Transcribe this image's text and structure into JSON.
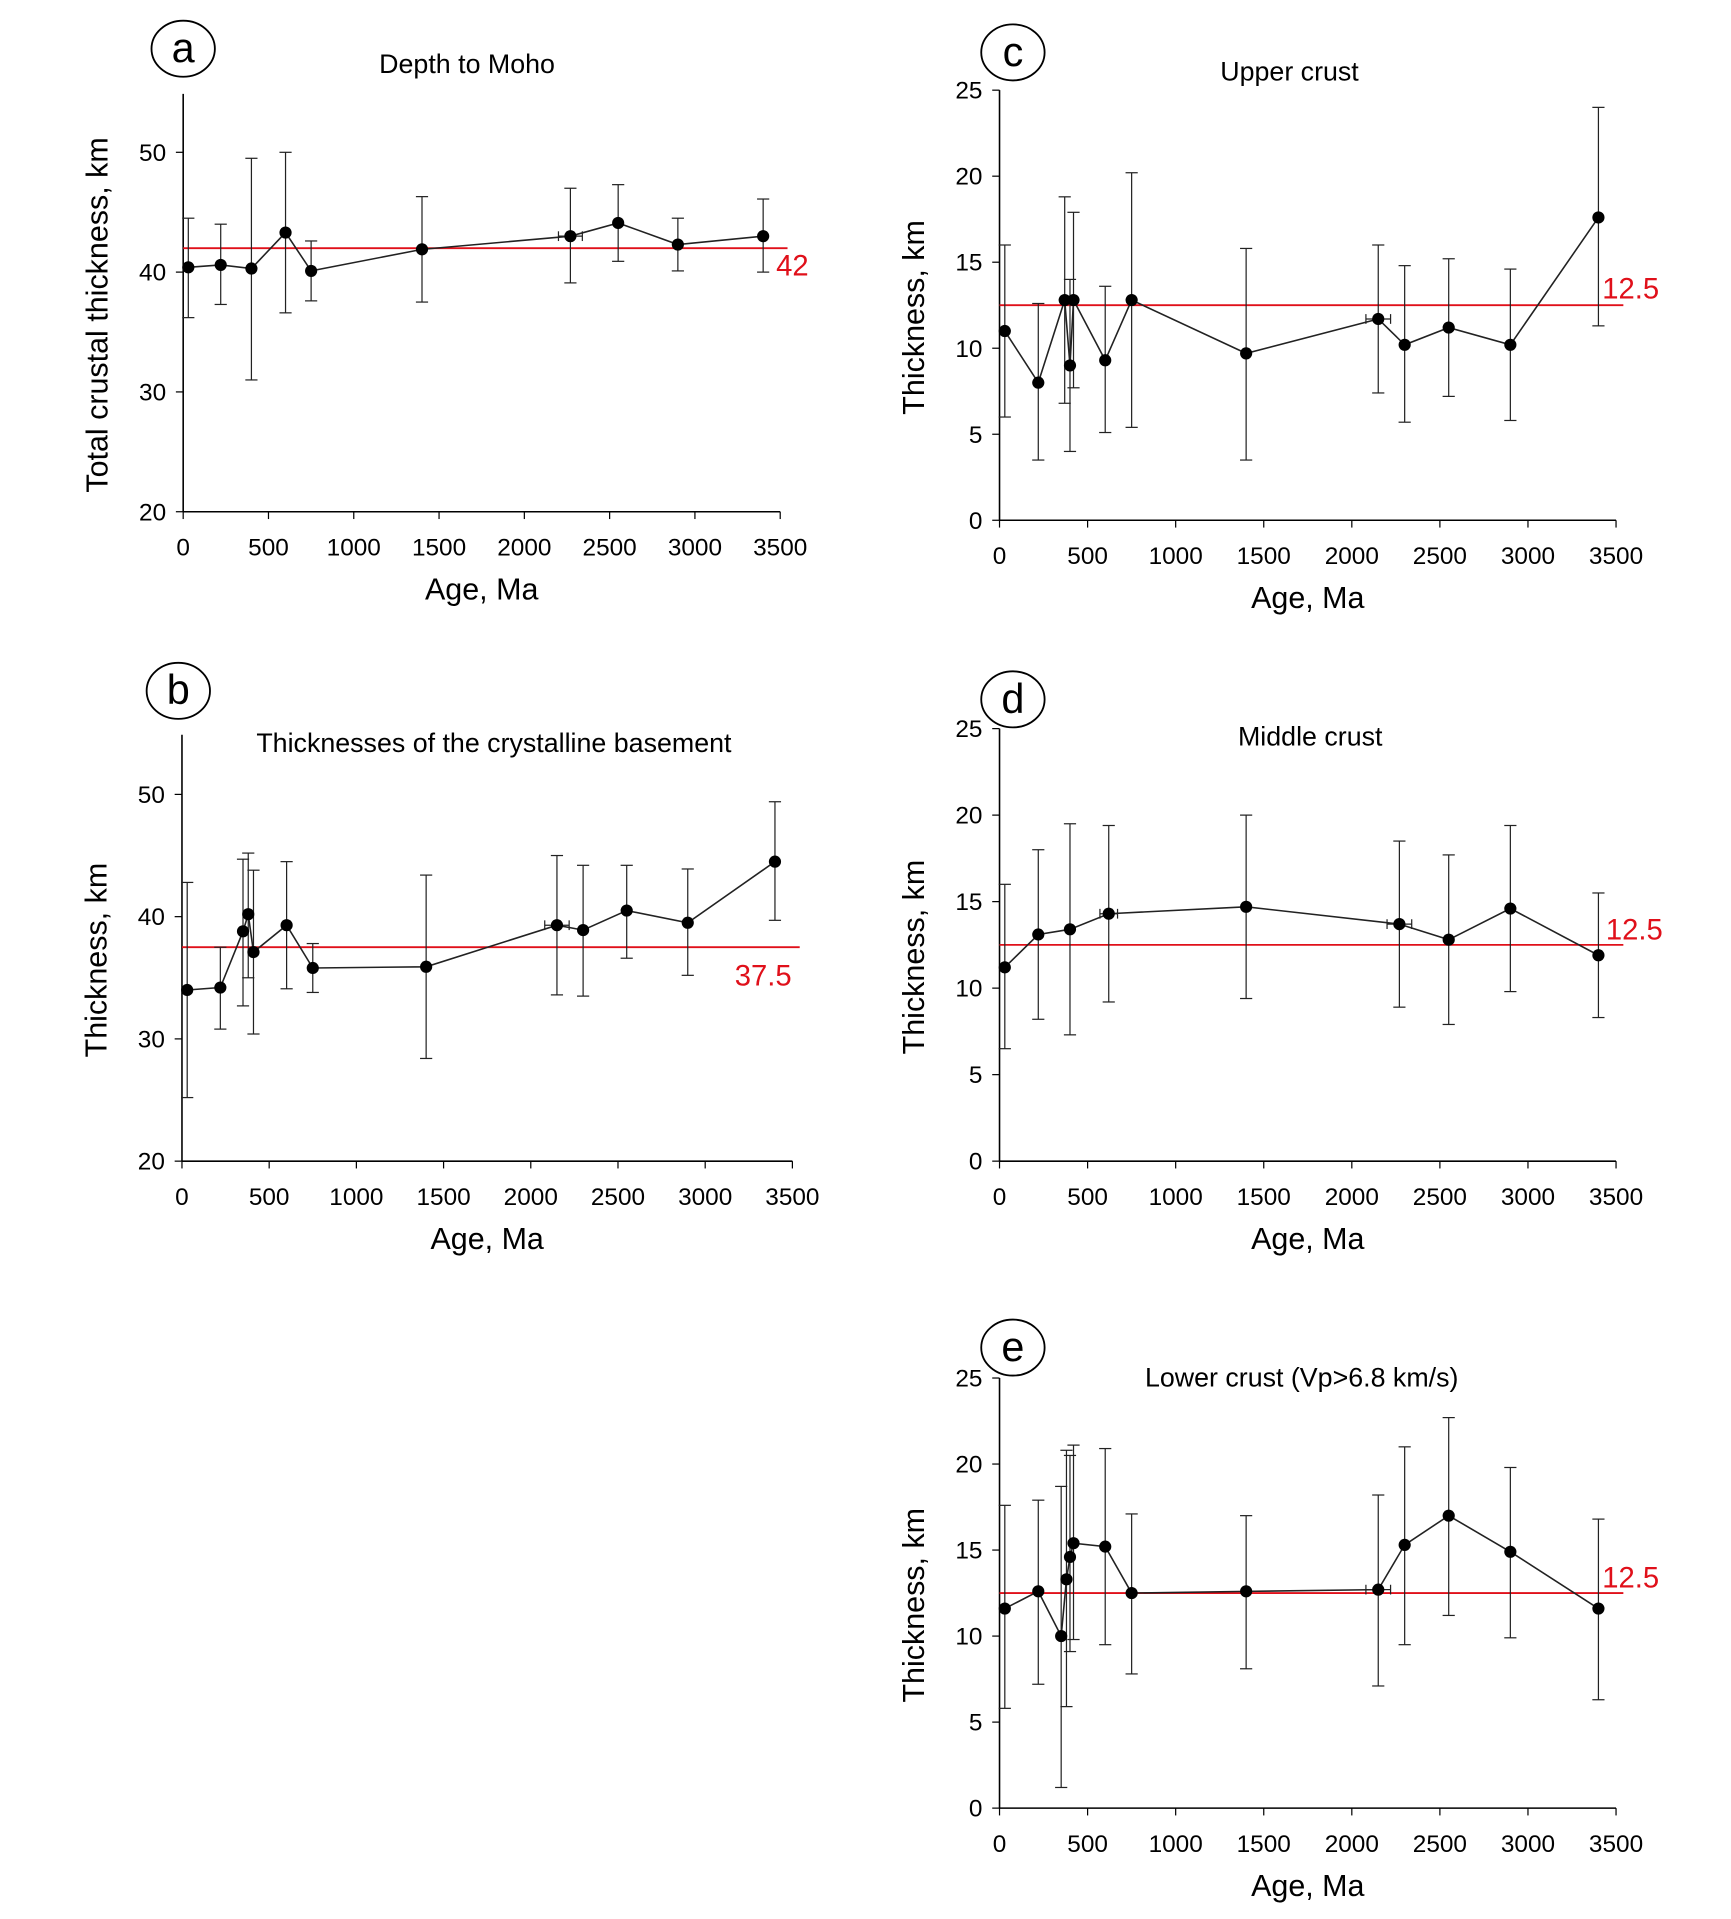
{
  "colors": {
    "data": "#000000",
    "mean_line": "#e0101a"
  },
  "chart_data": [
    {
      "panel": "a",
      "type": "line",
      "title": "Depth to Moho",
      "xlabel": "Age, Ma",
      "ylabel": "Total crustal thickness, km",
      "xlim": [
        0,
        3500
      ],
      "ylim": [
        20,
        55
      ],
      "xticks": [
        0,
        500,
        1000,
        1500,
        2000,
        2500,
        3000,
        3500
      ],
      "yticks": [
        20,
        30,
        40,
        50
      ],
      "mean": 42,
      "mean_label": "42",
      "points": [
        {
          "x": 30,
          "y": 40.4,
          "ylo": 36.2,
          "yhi": 44.5
        },
        {
          "x": 220,
          "y": 40.6,
          "ylo": 37.3,
          "yhi": 44.0
        },
        {
          "x": 400,
          "y": 40.3,
          "ylo": 31.0,
          "yhi": 49.5
        },
        {
          "x": 600,
          "y": 43.3,
          "ylo": 36.6,
          "yhi": 50.0
        },
        {
          "x": 750,
          "y": 40.1,
          "ylo": 37.6,
          "yhi": 42.6
        },
        {
          "x": 1400,
          "y": 41.9,
          "ylo": 37.5,
          "yhi": 46.3
        },
        {
          "x": 2270,
          "y": 43.0,
          "ylo": 39.1,
          "yhi": 47.0,
          "xlo": 2200,
          "xhi": 2340
        },
        {
          "x": 2550,
          "y": 44.1,
          "ylo": 40.9,
          "yhi": 47.3
        },
        {
          "x": 2900,
          "y": 42.3,
          "ylo": 40.1,
          "yhi": 44.5
        },
        {
          "x": 3400,
          "y": 43.0,
          "ylo": 40.0,
          "yhi": 46.1
        }
      ]
    },
    {
      "panel": "b",
      "type": "line",
      "title": "Thicknesses of the crystalline basement",
      "xlabel": "Age, Ma",
      "ylabel": "Thickness, km",
      "xlim": [
        0,
        3500
      ],
      "ylim": [
        20,
        55
      ],
      "xticks": [
        0,
        500,
        1000,
        1500,
        2000,
        2500,
        3000,
        3500
      ],
      "yticks": [
        20,
        30,
        40,
        50
      ],
      "mean": 37.5,
      "mean_label": "37.5",
      "points": [
        {
          "x": 30,
          "y": 34.0,
          "ylo": 25.2,
          "yhi": 42.8
        },
        {
          "x": 220,
          "y": 34.2,
          "ylo": 30.8,
          "yhi": 37.5
        },
        {
          "x": 350,
          "y": 38.8,
          "ylo": 32.7,
          "yhi": 44.7
        },
        {
          "x": 380,
          "y": 40.2,
          "ylo": 35.0,
          "yhi": 45.2
        },
        {
          "x": 410,
          "y": 37.1,
          "ylo": 30.4,
          "yhi": 43.8
        },
        {
          "x": 600,
          "y": 39.3,
          "ylo": 34.1,
          "yhi": 44.5
        },
        {
          "x": 750,
          "y": 35.8,
          "ylo": 33.8,
          "yhi": 37.8
        },
        {
          "x": 1400,
          "y": 35.9,
          "ylo": 28.4,
          "yhi": 43.4
        },
        {
          "x": 2150,
          "y": 39.3,
          "ylo": 33.6,
          "yhi": 45.0,
          "xlo": 2080,
          "xhi": 2220
        },
        {
          "x": 2300,
          "y": 38.9,
          "ylo": 33.5,
          "yhi": 44.2
        },
        {
          "x": 2550,
          "y": 40.5,
          "ylo": 36.6,
          "yhi": 44.2
        },
        {
          "x": 2900,
          "y": 39.5,
          "ylo": 35.2,
          "yhi": 43.9
        },
        {
          "x": 3400,
          "y": 44.5,
          "ylo": 39.7,
          "yhi": 49.4
        }
      ]
    },
    {
      "panel": "c",
      "type": "line",
      "title": "Upper crust",
      "xlabel": "Age, Ma",
      "ylabel": "Thickness, km",
      "xlim": [
        0,
        3500
      ],
      "ylim": [
        0,
        25
      ],
      "xticks": [
        0,
        500,
        1000,
        1500,
        2000,
        2500,
        3000,
        3500
      ],
      "yticks": [
        0,
        5,
        10,
        15,
        20,
        25
      ],
      "mean": 12.5,
      "mean_label": "12.5",
      "points": [
        {
          "x": 30,
          "y": 11.0,
          "ylo": 6.0,
          "yhi": 16.0
        },
        {
          "x": 220,
          "y": 8.0,
          "ylo": 3.5,
          "yhi": 12.6
        },
        {
          "x": 370,
          "y": 12.8,
          "ylo": 6.8,
          "yhi": 18.8
        },
        {
          "x": 400,
          "y": 9.0,
          "ylo": 4.0,
          "yhi": 14.0
        },
        {
          "x": 420,
          "y": 12.8,
          "ylo": 7.7,
          "yhi": 17.9
        },
        {
          "x": 600,
          "y": 9.3,
          "ylo": 5.1,
          "yhi": 13.6
        },
        {
          "x": 750,
          "y": 12.8,
          "ylo": 5.4,
          "yhi": 20.2
        },
        {
          "x": 1400,
          "y": 9.7,
          "ylo": 3.5,
          "yhi": 15.8
        },
        {
          "x": 2150,
          "y": 11.7,
          "ylo": 7.4,
          "yhi": 16.0,
          "xlo": 2080,
          "xhi": 2220
        },
        {
          "x": 2300,
          "y": 10.2,
          "ylo": 5.7,
          "yhi": 14.8
        },
        {
          "x": 2550,
          "y": 11.2,
          "ylo": 7.2,
          "yhi": 15.2
        },
        {
          "x": 2900,
          "y": 10.2,
          "ylo": 5.8,
          "yhi": 14.6
        },
        {
          "x": 3400,
          "y": 17.6,
          "ylo": 11.3,
          "yhi": 24.0
        }
      ]
    },
    {
      "panel": "d",
      "type": "line",
      "title": "Middle crust",
      "xlabel": "Age, Ma",
      "ylabel": "Thickness, km",
      "xlim": [
        0,
        3500
      ],
      "ylim": [
        0,
        25
      ],
      "xticks": [
        0,
        500,
        1000,
        1500,
        2000,
        2500,
        3000,
        3500
      ],
      "yticks": [
        0,
        5,
        10,
        15,
        20,
        25
      ],
      "mean": 12.5,
      "mean_label": "12.5",
      "points": [
        {
          "x": 30,
          "y": 11.2,
          "ylo": 6.5,
          "yhi": 16.0
        },
        {
          "x": 220,
          "y": 13.1,
          "ylo": 8.2,
          "yhi": 18.0
        },
        {
          "x": 400,
          "y": 13.4,
          "ylo": 7.3,
          "yhi": 19.5
        },
        {
          "x": 620,
          "y": 14.3,
          "ylo": 9.2,
          "yhi": 19.4,
          "xlo": 570,
          "xhi": 670
        },
        {
          "x": 1400,
          "y": 14.7,
          "ylo": 9.4,
          "yhi": 20.0
        },
        {
          "x": 2270,
          "y": 13.7,
          "ylo": 8.9,
          "yhi": 18.5,
          "xlo": 2200,
          "xhi": 2340
        },
        {
          "x": 2550,
          "y": 12.8,
          "ylo": 7.9,
          "yhi": 17.7
        },
        {
          "x": 2900,
          "y": 14.6,
          "ylo": 9.8,
          "yhi": 19.4
        },
        {
          "x": 3400,
          "y": 11.9,
          "ylo": 8.3,
          "yhi": 15.5
        }
      ]
    },
    {
      "panel": "e",
      "type": "line",
      "title": "Lower crust (Vp>6.8 km/s)",
      "xlabel": "Age, Ma",
      "ylabel": "Thickness, km",
      "xlim": [
        0,
        3500
      ],
      "ylim": [
        0,
        25
      ],
      "xticks": [
        0,
        500,
        1000,
        1500,
        2000,
        2500,
        3000,
        3500
      ],
      "yticks": [
        0,
        5,
        10,
        15,
        20,
        25
      ],
      "mean": 12.5,
      "mean_label": "12.5",
      "points": [
        {
          "x": 30,
          "y": 11.6,
          "ylo": 5.8,
          "yhi": 17.6
        },
        {
          "x": 220,
          "y": 12.6,
          "ylo": 7.2,
          "yhi": 17.9
        },
        {
          "x": 350,
          "y": 10.0,
          "ylo": 1.2,
          "yhi": 18.7
        },
        {
          "x": 380,
          "y": 13.3,
          "ylo": 5.9,
          "yhi": 20.8
        },
        {
          "x": 400,
          "y": 14.6,
          "ylo": 9.1,
          "yhi": 20.5
        },
        {
          "x": 420,
          "y": 15.4,
          "ylo": 9.8,
          "yhi": 21.1
        },
        {
          "x": 600,
          "y": 15.2,
          "ylo": 9.5,
          "yhi": 20.9
        },
        {
          "x": 750,
          "y": 12.5,
          "ylo": 7.8,
          "yhi": 17.1
        },
        {
          "x": 1400,
          "y": 12.6,
          "ylo": 8.1,
          "yhi": 17.0
        },
        {
          "x": 2150,
          "y": 12.7,
          "ylo": 7.1,
          "yhi": 18.2,
          "xlo": 2080,
          "xhi": 2220
        },
        {
          "x": 2300,
          "y": 15.3,
          "ylo": 9.5,
          "yhi": 21.0
        },
        {
          "x": 2550,
          "y": 17.0,
          "ylo": 11.2,
          "yhi": 22.7
        },
        {
          "x": 2900,
          "y": 14.9,
          "ylo": 9.9,
          "yhi": 19.8
        },
        {
          "x": 3400,
          "y": 11.6,
          "ylo": 6.3,
          "yhi": 16.8
        }
      ]
    }
  ]
}
